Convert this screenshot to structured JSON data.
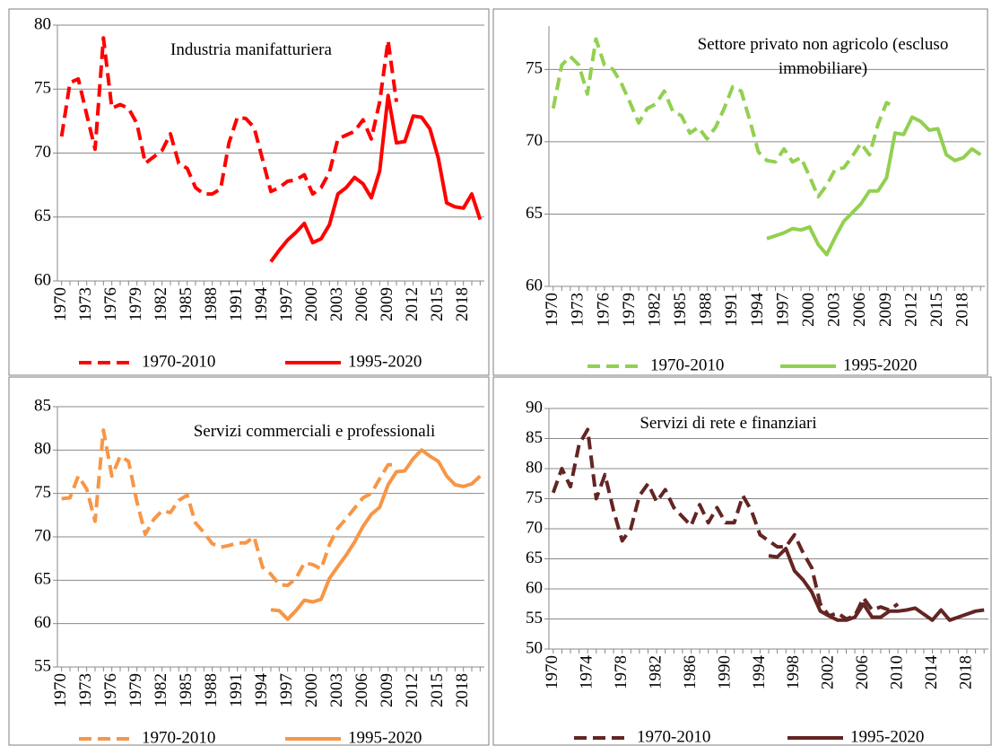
{
  "chart_data": [
    {
      "type": "line",
      "title": "Industria manifatturiera",
      "x": [
        1970,
        1971,
        1972,
        1973,
        1974,
        1975,
        1976,
        1977,
        1978,
        1979,
        1980,
        1981,
        1982,
        1983,
        1984,
        1985,
        1986,
        1987,
        1988,
        1989,
        1990,
        1991,
        1992,
        1993,
        1994,
        1995,
        1996,
        1997,
        1998,
        1999,
        2000,
        2001,
        2002,
        2003,
        2004,
        2005,
        2006,
        2007,
        2008,
        2009,
        2010,
        2011,
        2012,
        2013,
        2014,
        2015,
        2016,
        2017,
        2018,
        2019,
        2020
      ],
      "xlim": [
        1969.5,
        2020.5
      ],
      "xticks": [
        1970,
        1973,
        1976,
        1979,
        1982,
        1985,
        1988,
        1991,
        1994,
        1997,
        2000,
        2003,
        2006,
        2009,
        2012,
        2015,
        2018
      ],
      "ylim": [
        60,
        80
      ],
      "yticks": [
        60,
        65,
        70,
        75,
        80
      ],
      "grid": true,
      "series": [
        {
          "name": "1970-2010",
          "color": "#ff0000",
          "dashed": true,
          "values": [
            71.3,
            75.5,
            75.8,
            73,
            70.3,
            79,
            73.5,
            73.8,
            73.5,
            72.3,
            69.2,
            69.7,
            70.2,
            71.5,
            69.2,
            68.8,
            67.3,
            66.8,
            66.8,
            67.2,
            70.8,
            72.8,
            72.7,
            72,
            69.5,
            67,
            67.3,
            67.8,
            67.9,
            68.3,
            66.8,
            67.3,
            68.5,
            71.1,
            71.4,
            71.7,
            72.6,
            71.1,
            74,
            78.8,
            74,
            null,
            null,
            null,
            null,
            null,
            null,
            null,
            null,
            null,
            null
          ]
        },
        {
          "name": "1995-2020",
          "color": "#ff0000",
          "dashed": false,
          "values": [
            null,
            null,
            null,
            null,
            null,
            null,
            null,
            null,
            null,
            null,
            null,
            null,
            null,
            null,
            null,
            null,
            null,
            null,
            null,
            null,
            null,
            null,
            null,
            null,
            null,
            61.5,
            62.4,
            63.2,
            63.8,
            64.5,
            63,
            63.3,
            64.4,
            66.8,
            67.3,
            68.1,
            67.6,
            66.5,
            68.6,
            74.5,
            70.8,
            70.9,
            72.9,
            72.8,
            71.9,
            69.6,
            66.1,
            65.8,
            65.7,
            66.8,
            64.8
          ]
        }
      ]
    },
    {
      "type": "line",
      "title": "Settore privato non agricolo (escluso immobiliare)",
      "x": [
        1970,
        1971,
        1972,
        1973,
        1974,
        1975,
        1976,
        1977,
        1978,
        1979,
        1980,
        1981,
        1982,
        1983,
        1984,
        1985,
        1986,
        1987,
        1988,
        1989,
        1990,
        1991,
        1992,
        1993,
        1994,
        1995,
        1996,
        1997,
        1998,
        1999,
        2000,
        2001,
        2002,
        2003,
        2004,
        2005,
        2006,
        2007,
        2008,
        2009,
        2010,
        2011,
        2012,
        2013,
        2014,
        2015,
        2016,
        2017,
        2018,
        2019,
        2020
      ],
      "xlim": [
        1969.5,
        2020.5
      ],
      "xticks": [
        1970,
        1973,
        1976,
        1979,
        1982,
        1985,
        1988,
        1991,
        1994,
        1997,
        2000,
        2003,
        2006,
        2009,
        2012,
        2015,
        2018
      ],
      "ylim": [
        60,
        78
      ],
      "yticks": [
        60,
        65,
        70,
        75
      ],
      "grid": true,
      "series": [
        {
          "name": "1970-2010",
          "color": "#92d050",
          "dashed": true,
          "values": [
            72.3,
            75.3,
            75.9,
            75.3,
            73.3,
            77.1,
            75.3,
            75,
            74,
            72.7,
            71.3,
            72.3,
            72.6,
            73.5,
            72.1,
            71.8,
            70.6,
            71,
            70.2,
            71,
            72.3,
            73.8,
            73.5,
            71.5,
            69.3,
            68.7,
            68.6,
            69.5,
            68.6,
            68.9,
            67.6,
            66.2,
            67,
            68.1,
            68.2,
            69,
            69.9,
            69.1,
            71.2,
            72.7,
            72.4,
            null,
            null,
            null,
            null,
            null,
            null,
            null,
            null,
            null,
            null
          ]
        },
        {
          "name": "1995-2020",
          "color": "#92d050",
          "dashed": false,
          "values": [
            null,
            null,
            null,
            null,
            null,
            null,
            null,
            null,
            null,
            null,
            null,
            null,
            null,
            null,
            null,
            null,
            null,
            null,
            null,
            null,
            null,
            null,
            null,
            null,
            null,
            63.3,
            63.5,
            63.7,
            64,
            63.9,
            64.1,
            62.9,
            62.2,
            63.4,
            64.5,
            65.1,
            65.7,
            66.6,
            66.6,
            67.5,
            70.6,
            70.5,
            71.7,
            71.4,
            70.8,
            70.9,
            69.1,
            68.7,
            68.9,
            69.5,
            69.1
          ]
        }
      ]
    },
    {
      "type": "line",
      "title": "Servizi commerciali e professionali",
      "x": [
        1970,
        1971,
        1972,
        1973,
        1974,
        1975,
        1976,
        1977,
        1978,
        1979,
        1980,
        1981,
        1982,
        1983,
        1984,
        1985,
        1986,
        1987,
        1988,
        1989,
        1990,
        1991,
        1992,
        1993,
        1994,
        1995,
        1996,
        1997,
        1998,
        1999,
        2000,
        2001,
        2002,
        2003,
        2004,
        2005,
        2006,
        2007,
        2008,
        2009,
        2010,
        2011,
        2012,
        2013,
        2014,
        2015,
        2016,
        2017,
        2018,
        2019,
        2020
      ],
      "xlim": [
        1969.5,
        2020.5
      ],
      "xticks": [
        1970,
        1973,
        1976,
        1979,
        1982,
        1985,
        1988,
        1991,
        1994,
        1997,
        2000,
        2003,
        2006,
        2009,
        2012,
        2015,
        2018
      ],
      "ylim": [
        55,
        85
      ],
      "yticks": [
        55,
        60,
        65,
        70,
        75,
        80,
        85
      ],
      "grid": true,
      "series": [
        {
          "name": "1970-2010",
          "color": "#f79646",
          "dashed": true,
          "values": [
            74.4,
            74.5,
            77,
            75.5,
            71.8,
            82.3,
            77,
            79.3,
            78.7,
            74,
            70.3,
            72,
            73,
            72.8,
            74.2,
            74.8,
            71.6,
            70.5,
            69.2,
            68.8,
            69,
            69.3,
            69.3,
            70,
            66.5,
            65.7,
            64.5,
            64.4,
            65.2,
            67,
            66.8,
            66.3,
            69.1,
            71,
            72.1,
            73.3,
            74.5,
            75,
            76.7,
            78.3,
            78.3,
            null,
            null,
            null,
            null,
            null,
            null,
            null,
            null,
            null,
            null
          ]
        },
        {
          "name": "1995-2020",
          "color": "#f79646",
          "dashed": false,
          "values": [
            null,
            null,
            null,
            null,
            null,
            null,
            null,
            null,
            null,
            null,
            null,
            null,
            null,
            null,
            null,
            null,
            null,
            null,
            null,
            null,
            null,
            null,
            null,
            null,
            null,
            61.6,
            61.5,
            60.5,
            61.5,
            62.7,
            62.5,
            62.8,
            65.2,
            66.6,
            67.9,
            69.4,
            71.2,
            72.6,
            73.4,
            76,
            77.5,
            77.6,
            79,
            80,
            79.3,
            78.7,
            77,
            76,
            75.8,
            76.1,
            77
          ]
        }
      ]
    },
    {
      "type": "line",
      "title": "Servizi di rete e finanziari",
      "x": [
        1970,
        1971,
        1972,
        1973,
        1974,
        1975,
        1976,
        1977,
        1978,
        1979,
        1980,
        1981,
        1982,
        1983,
        1984,
        1985,
        1986,
        1987,
        1988,
        1989,
        1990,
        1991,
        1992,
        1993,
        1994,
        1995,
        1996,
        1997,
        1998,
        1999,
        2000,
        2001,
        2002,
        2003,
        2004,
        2005,
        2006,
        2007,
        2008,
        2009,
        2010,
        2011,
        2012,
        2013,
        2014,
        2015,
        2016,
        2017,
        2018,
        2019,
        2020
      ],
      "xlim": [
        1969.5,
        2020.5
      ],
      "xticks": [
        1970,
        1974,
        1978,
        1982,
        1986,
        1990,
        1994,
        1998,
        2002,
        2006,
        2010,
        2014,
        2018
      ],
      "ylim": [
        50,
        90
      ],
      "yticks": [
        50,
        55,
        60,
        65,
        70,
        75,
        80,
        85,
        90
      ],
      "grid": true,
      "series": [
        {
          "name": "1970-2010",
          "color": "#632523",
          "dashed": true,
          "values": [
            76,
            80,
            77,
            84,
            86.5,
            75,
            79,
            73,
            68,
            70,
            75.5,
            77.5,
            74.5,
            76.5,
            73.5,
            72,
            70.5,
            74,
            71,
            73.5,
            71,
            71,
            75.5,
            73,
            69,
            68,
            67,
            67,
            69,
            66,
            63.5,
            57.5,
            55.5,
            56,
            55,
            55.5,
            58.5,
            56.5,
            57,
            56.5,
            57.5,
            null,
            null,
            null,
            null,
            null,
            null,
            null,
            null,
            null,
            null
          ]
        },
        {
          "name": "1995-2020",
          "color": "#632523",
          "dashed": false,
          "values": [
            null,
            null,
            null,
            null,
            null,
            null,
            null,
            null,
            null,
            null,
            null,
            null,
            null,
            null,
            null,
            null,
            null,
            null,
            null,
            null,
            null,
            null,
            null,
            null,
            null,
            65.5,
            65.3,
            66.7,
            63,
            61.5,
            59.5,
            56.3,
            55.5,
            54.8,
            54.8,
            55.3,
            57.5,
            55.3,
            55.3,
            56.3,
            56.3,
            56.5,
            56.8,
            55.8,
            54.8,
            56.5,
            54.8,
            55.3,
            55.8,
            56.3,
            56.5
          ]
        }
      ]
    }
  ]
}
